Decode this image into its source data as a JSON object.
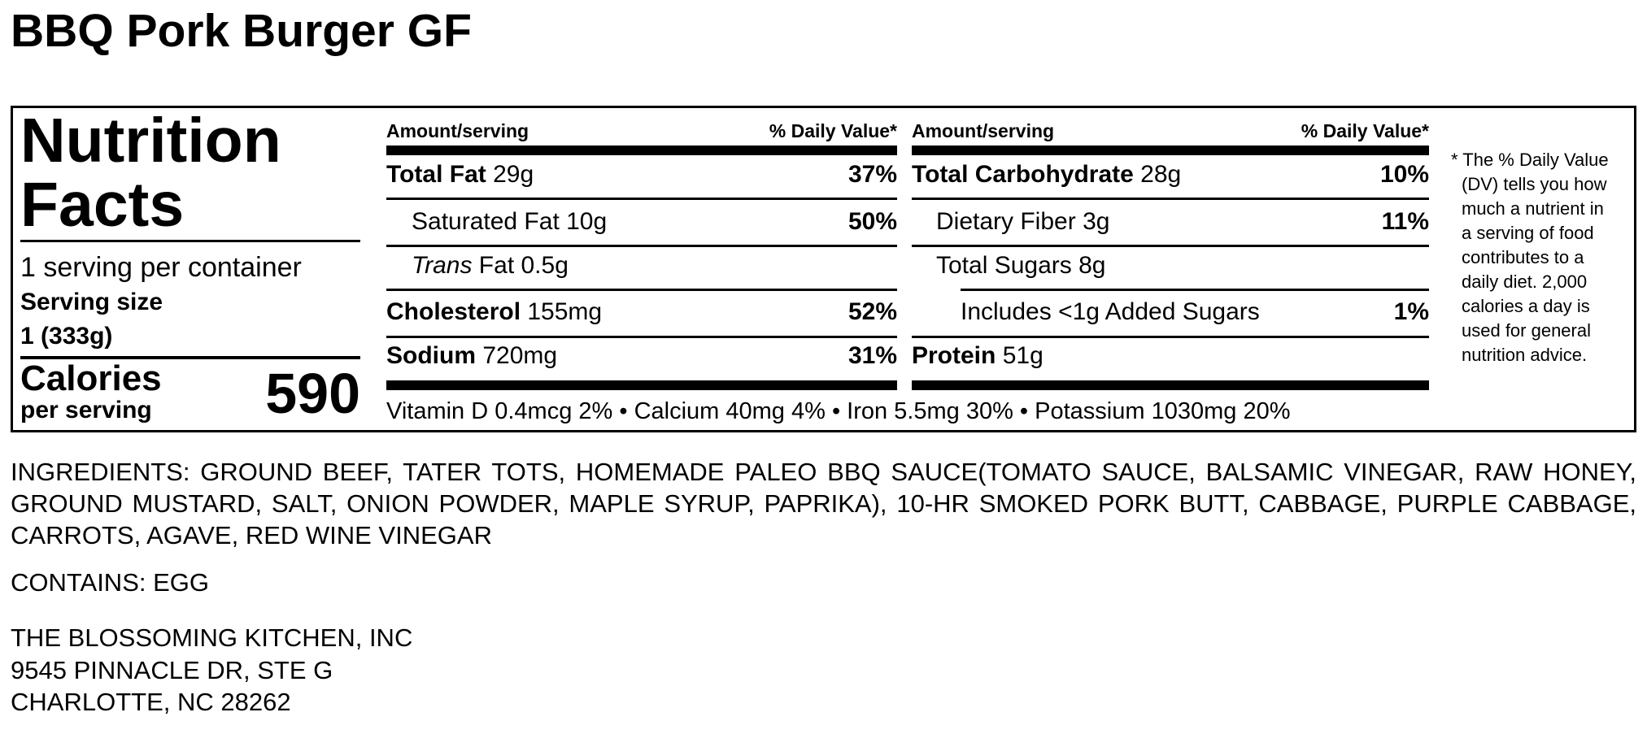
{
  "product_title": "BBQ Pork Burger GF",
  "label": {
    "heading_line1": "Nutrition",
    "heading_line2": "Facts",
    "servings_per_container": "1 serving per container",
    "serving_size_label": "Serving size",
    "serving_size_value": "1 (333g)",
    "calories_label": "Calories",
    "calories_sublabel": "per serving",
    "calories_value": "590",
    "col_header_amount": "Amount/serving",
    "col_header_dv": "% Daily Value*",
    "left_rows": [
      {
        "name": "Total Fat",
        "amount": "29g",
        "dv": "37%",
        "bold": true
      },
      {
        "name": "Saturated Fat",
        "amount": "10g",
        "dv": "50%"
      },
      {
        "name": "Trans",
        "name_suffix": " Fat",
        "amount": "0.5g",
        "dv": ""
      },
      {
        "name": "Cholesterol",
        "amount": "155mg",
        "dv": "52%",
        "bold": true
      },
      {
        "name": "Sodium",
        "amount": "720mg",
        "dv": "31%",
        "bold": true
      }
    ],
    "right_rows": [
      {
        "name": "Total Carbohydrate",
        "amount": "28g",
        "dv": "10%",
        "bold": true
      },
      {
        "name": "Dietary Fiber",
        "amount": "3g",
        "dv": "11%"
      },
      {
        "name": "Total Sugars",
        "amount": "8g",
        "dv": ""
      },
      {
        "name": "Includes <1g Added Sugars",
        "amount": "",
        "dv": "1%"
      },
      {
        "name": "Protein",
        "amount": "51g",
        "dv": "",
        "bold": true
      }
    ],
    "micronutrients": "Vitamin D 0.4mcg 2% • Calcium 40mg 4% • Iron 5.5mg 30% • Potassium 1030mg 20%",
    "footnote_lines": [
      "* The % Daily Value",
      "(DV) tells you how",
      "much a nutrient in",
      "a serving of food",
      "contributes to a",
      "daily diet. 2,000",
      "calories a day is",
      "used for general",
      "nutrition advice."
    ]
  },
  "ingredients": "INGREDIENTS: GROUND BEEF, TATER TOTS, HOMEMADE PALEO BBQ SAUCE(TOMATO SAUCE, BALSAMIC VINEGAR, RAW HONEY, GROUND MUSTARD, SALT, ONION POWDER, MAPLE SYRUP, PAPRIKA), 10-HR SMOKED PORK BUTT, CABBAGE, PURPLE CABBAGE, CARROTS, AGAVE, RED WINE VINEGAR",
  "contains": "CONTAINS: EGG",
  "address": [
    "THE BLOSSOMING KITCHEN, INC",
    "9545 PINNACLE DR, STE G",
    "CHARLOTTE, NC 28262"
  ]
}
